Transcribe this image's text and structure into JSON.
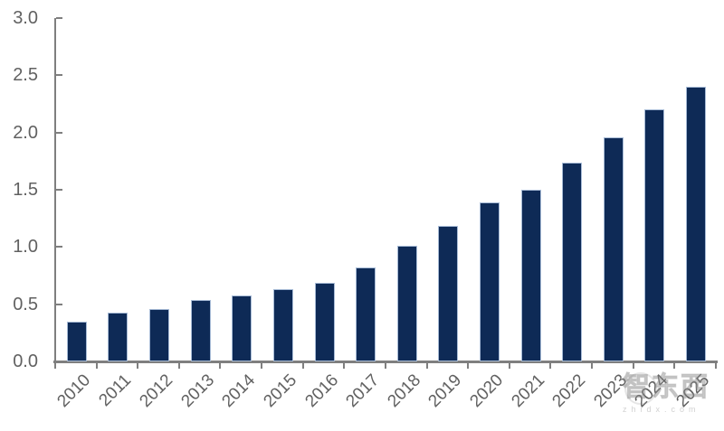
{
  "chart_data": {
    "type": "bar",
    "title": "",
    "xlabel": "",
    "ylabel": "",
    "categories": [
      "2010",
      "2011",
      "2012",
      "2013",
      "2014",
      "2015",
      "2016",
      "2017",
      "2018",
      "2019",
      "2020",
      "2021",
      "2022",
      "2023",
      "2024",
      "2025"
    ],
    "values": [
      0.35,
      0.43,
      0.46,
      0.54,
      0.58,
      0.63,
      0.69,
      0.82,
      1.01,
      1.18,
      1.39,
      1.5,
      1.74,
      1.96,
      2.2,
      2.4
    ],
    "ylim": [
      0,
      3.0
    ],
    "yticks": [
      "3.0",
      "2.5",
      "2.0",
      "1.5",
      "1.0",
      "0.5",
      "0.0"
    ],
    "grid": false,
    "legend": "none",
    "bar_color": "#0e2a56",
    "bar_border_color": "#a7bbd6",
    "axis_color": "#7f7f7f",
    "tick_label_color": "#616161"
  },
  "watermark": {
    "brand": "智东西",
    "domain": "zhidx.com"
  }
}
